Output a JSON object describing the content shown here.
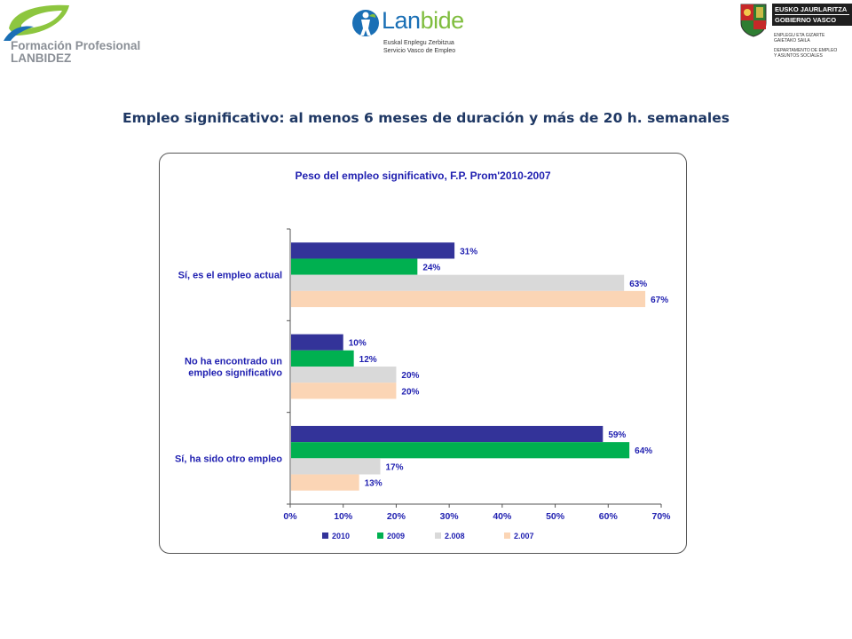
{
  "header": {
    "logo_left": {
      "line1": "Formación Profesional",
      "line2": "LANBIDEZ"
    },
    "logo_mid": {
      "brand_a": "Lan",
      "brand_b": "bide",
      "sub1": "Euskal Enplegu Zerbitzua",
      "sub2": "Servicio Vasco de Empleo"
    },
    "logo_right": {
      "gov1": "EUSKO JAURLARITZA",
      "gov2": "GOBIERNO VASCO",
      "dep1": "ENPLEGU ETA GIZARTE",
      "dep2": "GAIETAKO SAILA",
      "dep3": "DEPARTAMENTO DE EMPLEO",
      "dep4": "Y ASUNTOS SOCIALES"
    }
  },
  "slide_title": "Empleo significativo:  al menos 6 meses de duración y más de 20 h. semanales",
  "chart_data": {
    "type": "bar",
    "orientation": "horizontal",
    "title": "Peso del empleo significativo, F.P. Prom'2010-2007",
    "categories": [
      "Sí, es el empleo actual",
      "No ha encontrado un empleo significativo",
      "Sí, ha sido otro empleo"
    ],
    "category_lines": [
      [
        "Sí, es el empleo actual"
      ],
      [
        "No ha encontrado un",
        "empleo significativo"
      ],
      [
        "Sí, ha sido otro empleo"
      ]
    ],
    "series": [
      {
        "name": "2010",
        "color": "#333399",
        "values": [
          31,
          10,
          59
        ],
        "labels": [
          "31%",
          "10%",
          "59%"
        ]
      },
      {
        "name": "2009",
        "color": "#00b050",
        "values": [
          24,
          12,
          64
        ],
        "labels": [
          "24%",
          "12%",
          "64%"
        ]
      },
      {
        "name": "2.008",
        "color": "#d9d9d9",
        "values": [
          63,
          20,
          17
        ],
        "labels": [
          "63%",
          "20%",
          "17%"
        ]
      },
      {
        "name": "2.007",
        "color": "#fbd5b5",
        "values": [
          67,
          20,
          13
        ],
        "labels": [
          "67%",
          "20%",
          "13%"
        ]
      }
    ],
    "xlim": [
      0,
      70
    ],
    "xticks": [
      "0%",
      "10%",
      "20%",
      "30%",
      "40%",
      "50%",
      "60%",
      "70%"
    ],
    "grid": false,
    "legend_position": "bottom"
  }
}
